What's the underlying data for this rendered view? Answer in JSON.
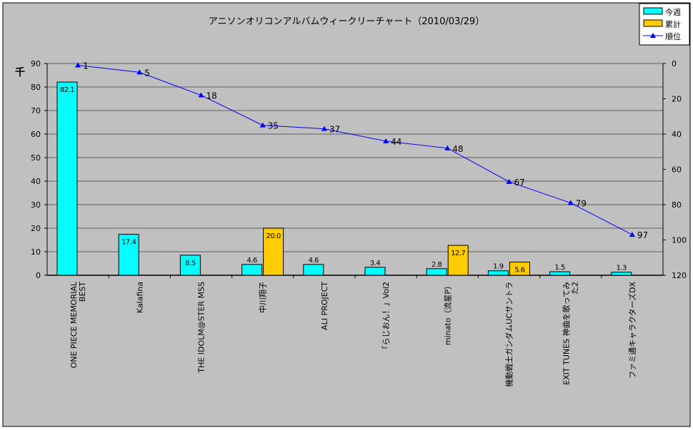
{
  "chart_data": {
    "type": "bar+line",
    "title": "アニソンオリコンアルバムウィークリーチャート（2010/03/29）",
    "ylabel_left": "千",
    "ylim_left": [
      0,
      90
    ],
    "yticks_left": [
      0,
      10,
      20,
      30,
      40,
      50,
      60,
      70,
      80,
      90
    ],
    "ylim_right": [
      0,
      120
    ],
    "right_axis_inverted": true,
    "yticks_right": [
      0,
      20,
      40,
      60,
      80,
      100,
      120
    ],
    "grid": true,
    "legend_position": "top-right",
    "categories": [
      [
        "ONE PIECE MEMORIAL",
        "BEST"
      ],
      [
        "Kalafina"
      ],
      [
        "THE IDOLM@STER MSS"
      ],
      [
        "中川翔子"
      ],
      [
        "ALI PROJECT"
      ],
      [
        "「らじおん！」Vol2"
      ],
      [
        "minato（流星P）"
      ],
      [
        "機動戦士ガンダムUCサントラ"
      ],
      [
        "EXIT TUNES 神曲を歌ってみ",
        "た2"
      ],
      [
        "ファミ通キャラクターズDX"
      ]
    ],
    "series": [
      {
        "name": "今週",
        "type": "bar",
        "axis": "left",
        "color": "#00ffff",
        "values": [
          82.1,
          17.4,
          8.5,
          4.6,
          4.6,
          3.4,
          2.8,
          1.9,
          1.5,
          1.3
        ],
        "labels": [
          "82.1",
          "17.4",
          "8.5",
          "4.6",
          "4.6",
          "3.4",
          "2.8",
          "1.9",
          "1.5",
          "1.3"
        ]
      },
      {
        "name": "累計",
        "type": "bar",
        "axis": "left",
        "color": "#ffcc00",
        "values": [
          null,
          null,
          null,
          20.0,
          null,
          null,
          12.7,
          5.6,
          null,
          null
        ],
        "labels": [
          null,
          null,
          null,
          "20.0",
          null,
          null,
          "12.7",
          "5.6",
          null,
          null
        ]
      },
      {
        "name": "順位",
        "type": "line",
        "axis": "right",
        "color": "#0000ff",
        "values": [
          1,
          5,
          18,
          35,
          37,
          44,
          48,
          67,
          79,
          97
        ],
        "labels": [
          "1",
          "5",
          "18",
          "35",
          "37",
          "44",
          "48",
          "67",
          "79",
          "97"
        ]
      }
    ]
  }
}
